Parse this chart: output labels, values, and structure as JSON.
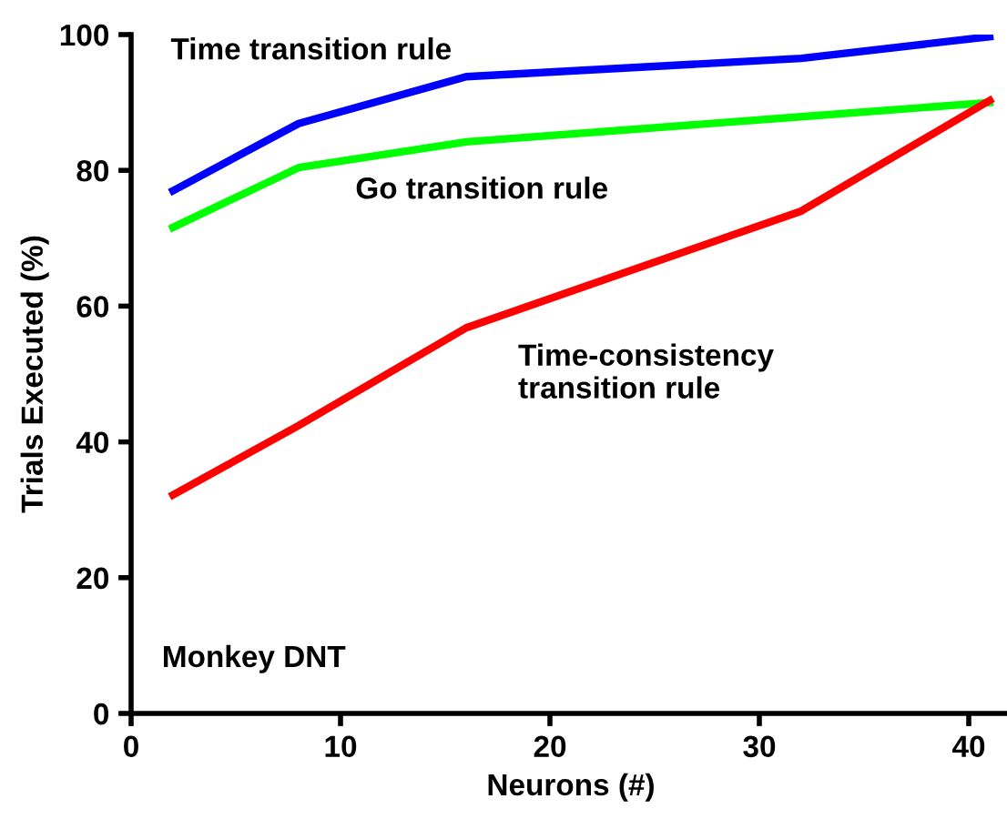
{
  "chart_data": {
    "type": "line",
    "xlabel": "Neurons (#)",
    "ylabel": "Trials Executed (%)",
    "xlim": [
      0,
      42
    ],
    "xticks": [
      0,
      10,
      20,
      30,
      40
    ],
    "ylim": [
      0,
      100
    ],
    "yticks": [
      0,
      20,
      40,
      60,
      80,
      100
    ],
    "grid": false,
    "legend": false,
    "marker": "none",
    "x": [
      2,
      8,
      16,
      32,
      41
    ],
    "series": [
      {
        "color": "#0000ff",
        "values": [
          77,
          86.9,
          93.8,
          96.5,
          99.7
        ]
      },
      {
        "color": "#00ff00",
        "values": [
          71.6,
          80.4,
          84.2,
          87.9,
          90
        ]
      },
      {
        "color": "#ff0000",
        "values": [
          32.2,
          42.4,
          56.8,
          74,
          90.3
        ]
      }
    ],
    "annotations": [
      "Time transition rule",
      "Go transition rule",
      "Time-consistency\ntransition rule",
      "Monkey DNT"
    ]
  }
}
